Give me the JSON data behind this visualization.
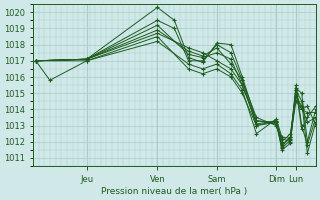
{
  "xlabel": "Pression niveau de la mer( hPa )",
  "bg_color": "#d0e8e8",
  "grid_color": "#a8cccc",
  "line_color": "#1e5c1e",
  "ylim": [
    1010.5,
    1020.5
  ],
  "yticks": [
    1011,
    1012,
    1013,
    1014,
    1015,
    1016,
    1017,
    1018,
    1019,
    1020
  ],
  "xlim": [
    0,
    1.0
  ],
  "day_positions": [
    0.19,
    0.44,
    0.65,
    0.86,
    0.93
  ],
  "day_labels": [
    "Jeu",
    "Ven",
    "Sam",
    "Dim",
    "Lun"
  ],
  "series": [
    [
      0.01,
      1017.0,
      0.19,
      1017.1,
      0.44,
      1020.3,
      0.5,
      1019.5,
      0.55,
      1017.2,
      0.6,
      1016.9,
      0.65,
      1018.1,
      0.7,
      1018.0,
      0.74,
      1016.0,
      0.79,
      1013.3,
      0.86,
      1013.1,
      0.88,
      1011.8,
      0.91,
      1012.3,
      0.93,
      1015.3,
      0.95,
      1015.0,
      0.97,
      1012.0,
      1.0,
      1014.0
    ],
    [
      0.01,
      1017.0,
      0.19,
      1017.1,
      0.44,
      1019.5,
      0.5,
      1019.0,
      0.55,
      1017.0,
      0.6,
      1017.0,
      0.65,
      1018.0,
      0.7,
      1017.5,
      0.74,
      1015.8,
      0.79,
      1013.0,
      0.86,
      1013.2,
      0.88,
      1011.6,
      0.91,
      1012.1,
      0.93,
      1015.2,
      0.95,
      1014.5,
      0.97,
      1011.3,
      1.0,
      1013.2
    ],
    [
      0.01,
      1017.0,
      0.19,
      1017.1,
      0.44,
      1019.2,
      0.55,
      1017.4,
      0.6,
      1017.2,
      0.65,
      1017.5,
      0.7,
      1017.1,
      0.74,
      1015.5,
      0.79,
      1013.1,
      0.86,
      1013.3,
      0.88,
      1012.0,
      0.91,
      1012.5,
      0.93,
      1014.8,
      0.95,
      1014.2,
      0.97,
      1013.2,
      1.0,
      1013.5
    ],
    [
      0.01,
      1017.0,
      0.19,
      1017.1,
      0.44,
      1018.9,
      0.55,
      1017.6,
      0.6,
      1017.3,
      0.65,
      1017.8,
      0.7,
      1016.8,
      0.74,
      1015.8,
      0.79,
      1013.5,
      0.86,
      1013.0,
      0.88,
      1012.2,
      0.91,
      1012.0,
      0.93,
      1015.0,
      0.95,
      1014.0,
      0.97,
      1014.2,
      1.0,
      1013.0
    ],
    [
      0.01,
      1017.0,
      0.19,
      1017.1,
      0.44,
      1018.7,
      0.55,
      1017.8,
      0.6,
      1017.5,
      0.65,
      1017.0,
      0.7,
      1016.5,
      0.74,
      1015.5,
      0.79,
      1013.3,
      0.86,
      1013.2,
      0.88,
      1011.5,
      0.91,
      1011.9,
      0.93,
      1015.2,
      0.95,
      1012.8,
      0.97,
      1013.5,
      1.0,
      1014.2
    ],
    [
      0.01,
      1017.0,
      0.06,
      1015.8,
      0.19,
      1017.0,
      0.44,
      1018.5,
      0.55,
      1016.5,
      0.6,
      1016.2,
      0.65,
      1016.5,
      0.7,
      1016.0,
      0.74,
      1015.0,
      0.79,
      1013.0,
      0.86,
      1013.3,
      0.88,
      1011.7,
      0.91,
      1012.3,
      0.93,
      1014.5,
      0.95,
      1014.0,
      0.97,
      1013.8,
      1.0,
      1013.8
    ],
    [
      0.01,
      1017.0,
      0.19,
      1017.0,
      0.44,
      1018.2,
      0.55,
      1016.8,
      0.6,
      1016.5,
      0.65,
      1016.8,
      0.7,
      1016.2,
      0.74,
      1015.2,
      0.79,
      1012.5,
      0.86,
      1013.4,
      0.88,
      1012.3,
      0.91,
      1012.2,
      0.93,
      1015.5,
      0.95,
      1013.0,
      0.97,
      1011.8,
      1.0,
      1013.5
    ]
  ]
}
